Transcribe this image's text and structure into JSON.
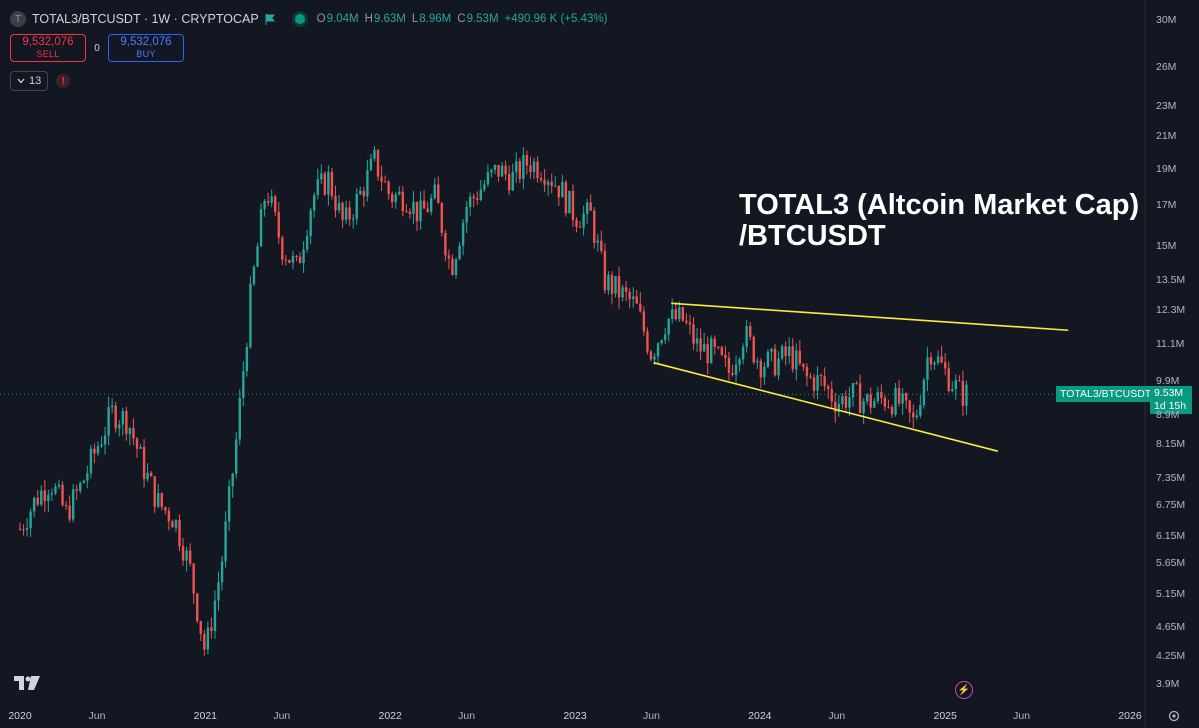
{
  "header": {
    "symbol_title": "TOTAL3/BTCUSDT · 1W · CRYPTOCAP",
    "logo_letter": "T",
    "ohlc": [
      {
        "key": "O",
        "value": "9.04M"
      },
      {
        "key": "H",
        "value": "9.63M"
      },
      {
        "key": "L",
        "value": "8.96M"
      },
      {
        "key": "C",
        "value": "9.53M"
      },
      {
        "key": "",
        "value": "+490.96 K (+5.43%)"
      }
    ]
  },
  "trade": {
    "sell_price": "9,532,076",
    "sell_label": "SELL",
    "spread": "0",
    "buy_price": "9,532,076",
    "buy_label": "BUY"
  },
  "indicators": {
    "count": "13",
    "warning": "!"
  },
  "annotation": {
    "line1": "TOTAL3 (Altcoin Market Cap)",
    "line2": "/BTCUSDT"
  },
  "last_price": {
    "symbol_label": "TOTAL3/BTCUSDT",
    "price": "9.53M",
    "countdown": "1d 15h"
  },
  "y_axis": [
    "30M",
    "26M",
    "23M",
    "21M",
    "19M",
    "17M",
    "15M",
    "13.5M",
    "12.3M",
    "11.1M",
    "9.9M",
    "8.9M",
    "8.15M",
    "7.35M",
    "6.75M",
    "6.15M",
    "5.65M",
    "5.15M",
    "4.65M",
    "4.25M",
    "3.9M"
  ],
  "x_axis": [
    {
      "label": "2020",
      "major": true
    },
    {
      "label": "Jun",
      "major": false
    },
    {
      "label": "2021",
      "major": true
    },
    {
      "label": "Jun",
      "major": false
    },
    {
      "label": "2022",
      "major": true
    },
    {
      "label": "Jun",
      "major": false
    },
    {
      "label": "2023",
      "major": true
    },
    {
      "label": "Jun",
      "major": false
    },
    {
      "label": "2024",
      "major": true
    },
    {
      "label": "Jun",
      "major": false
    },
    {
      "label": "2025",
      "major": true
    },
    {
      "label": "Jun",
      "major": false
    },
    {
      "label": "2026",
      "major": true
    }
  ],
  "colors": {
    "up": "#26a69a",
    "down": "#ef5350",
    "trendline": "#ffeb3b",
    "background": "#131722",
    "accent": "#089981"
  },
  "icons": {
    "logo": "tradingview-logo-icon",
    "flag": "flag-icon",
    "bolt": "lightning-icon",
    "settings": "gear-icon"
  },
  "chart_data": {
    "type": "candlestick",
    "interval": "1W",
    "y_scale": "log",
    "x_range": [
      "2020-01-01",
      "2026-02-01"
    ],
    "y_range": [
      3700000,
      31000000
    ],
    "close_series": [
      {
        "date": "2020-01-01",
        "value": 6300000
      },
      {
        "date": "2020-02-01",
        "value": 6900000
      },
      {
        "date": "2020-03-01",
        "value": 7300000
      },
      {
        "date": "2020-04-01",
        "value": 6600000
      },
      {
        "date": "2020-05-01",
        "value": 7200000
      },
      {
        "date": "2020-06-01",
        "value": 8100000
      },
      {
        "date": "2020-07-01",
        "value": 9000000
      },
      {
        "date": "2020-08-01",
        "value": 8800000
      },
      {
        "date": "2020-09-01",
        "value": 7600000
      },
      {
        "date": "2020-10-01",
        "value": 6800000
      },
      {
        "date": "2020-11-01",
        "value": 6500000
      },
      {
        "date": "2020-12-01",
        "value": 5600000
      },
      {
        "date": "2021-01-01",
        "value": 4300000
      },
      {
        "date": "2021-02-01",
        "value": 5600000
      },
      {
        "date": "2021-03-01",
        "value": 8000000
      },
      {
        "date": "2021-04-01",
        "value": 13000000
      },
      {
        "date": "2021-05-01",
        "value": 18000000
      },
      {
        "date": "2021-06-01",
        "value": 15000000
      },
      {
        "date": "2021-07-01",
        "value": 14000000
      },
      {
        "date": "2021-08-01",
        "value": 17500000
      },
      {
        "date": "2021-09-01",
        "value": 18500000
      },
      {
        "date": "2021-10-01",
        "value": 16000000
      },
      {
        "date": "2021-11-01",
        "value": 17500000
      },
      {
        "date": "2021-12-01",
        "value": 19500000
      },
      {
        "date": "2022-01-01",
        "value": 17500000
      },
      {
        "date": "2022-02-01",
        "value": 17500000
      },
      {
        "date": "2022-03-01",
        "value": 16500000
      },
      {
        "date": "2022-04-01",
        "value": 17500000
      },
      {
        "date": "2022-05-01",
        "value": 14000000
      },
      {
        "date": "2022-06-01",
        "value": 17000000
      },
      {
        "date": "2022-07-01",
        "value": 18000000
      },
      {
        "date": "2022-08-01",
        "value": 19000000
      },
      {
        "date": "2022-09-01",
        "value": 18500000
      },
      {
        "date": "2022-10-01",
        "value": 19500000
      },
      {
        "date": "2022-11-01",
        "value": 19000000
      },
      {
        "date": "2022-12-01",
        "value": 18000000
      },
      {
        "date": "2023-01-01",
        "value": 16500000
      },
      {
        "date": "2023-02-01",
        "value": 16500000
      },
      {
        "date": "2023-03-01",
        "value": 13500000
      },
      {
        "date": "2023-04-01",
        "value": 13000000
      },
      {
        "date": "2023-05-01",
        "value": 12500000
      },
      {
        "date": "2023-06-01",
        "value": 10800000
      },
      {
        "date": "2023-07-01",
        "value": 12000000
      },
      {
        "date": "2023-08-01",
        "value": 12000000
      },
      {
        "date": "2023-09-01",
        "value": 11000000
      },
      {
        "date": "2023-10-01",
        "value": 10800000
      },
      {
        "date": "2023-11-01",
        "value": 10200000
      },
      {
        "date": "2023-12-01",
        "value": 11500000
      },
      {
        "date": "2024-01-01",
        "value": 10500000
      },
      {
        "date": "2024-02-01",
        "value": 10500000
      },
      {
        "date": "2024-03-01",
        "value": 10800000
      },
      {
        "date": "2024-04-01",
        "value": 10000000
      },
      {
        "date": "2024-05-01",
        "value": 9900000
      },
      {
        "date": "2024-06-01",
        "value": 9300000
      },
      {
        "date": "2024-07-01",
        "value": 9500000
      },
      {
        "date": "2024-08-01",
        "value": 9300000
      },
      {
        "date": "2024-09-01",
        "value": 9400000
      },
      {
        "date": "2024-10-01",
        "value": 9300000
      },
      {
        "date": "2024-11-01",
        "value": 8700000
      },
      {
        "date": "2024-12-01",
        "value": 11000000
      },
      {
        "date": "2025-01-01",
        "value": 10200000
      },
      {
        "date": "2025-02-01",
        "value": 9530000
      }
    ],
    "trendlines": [
      {
        "name": "upper",
        "from": {
          "date": "2023-07-10",
          "value": 12600000
        },
        "to": {
          "date": "2025-09-01",
          "value": 11600000
        }
      },
      {
        "name": "lower",
        "from": {
          "date": "2023-06-05",
          "value": 10500000
        },
        "to": {
          "date": "2025-04-15",
          "value": 8000000
        }
      }
    ],
    "last_price": 9530000
  }
}
